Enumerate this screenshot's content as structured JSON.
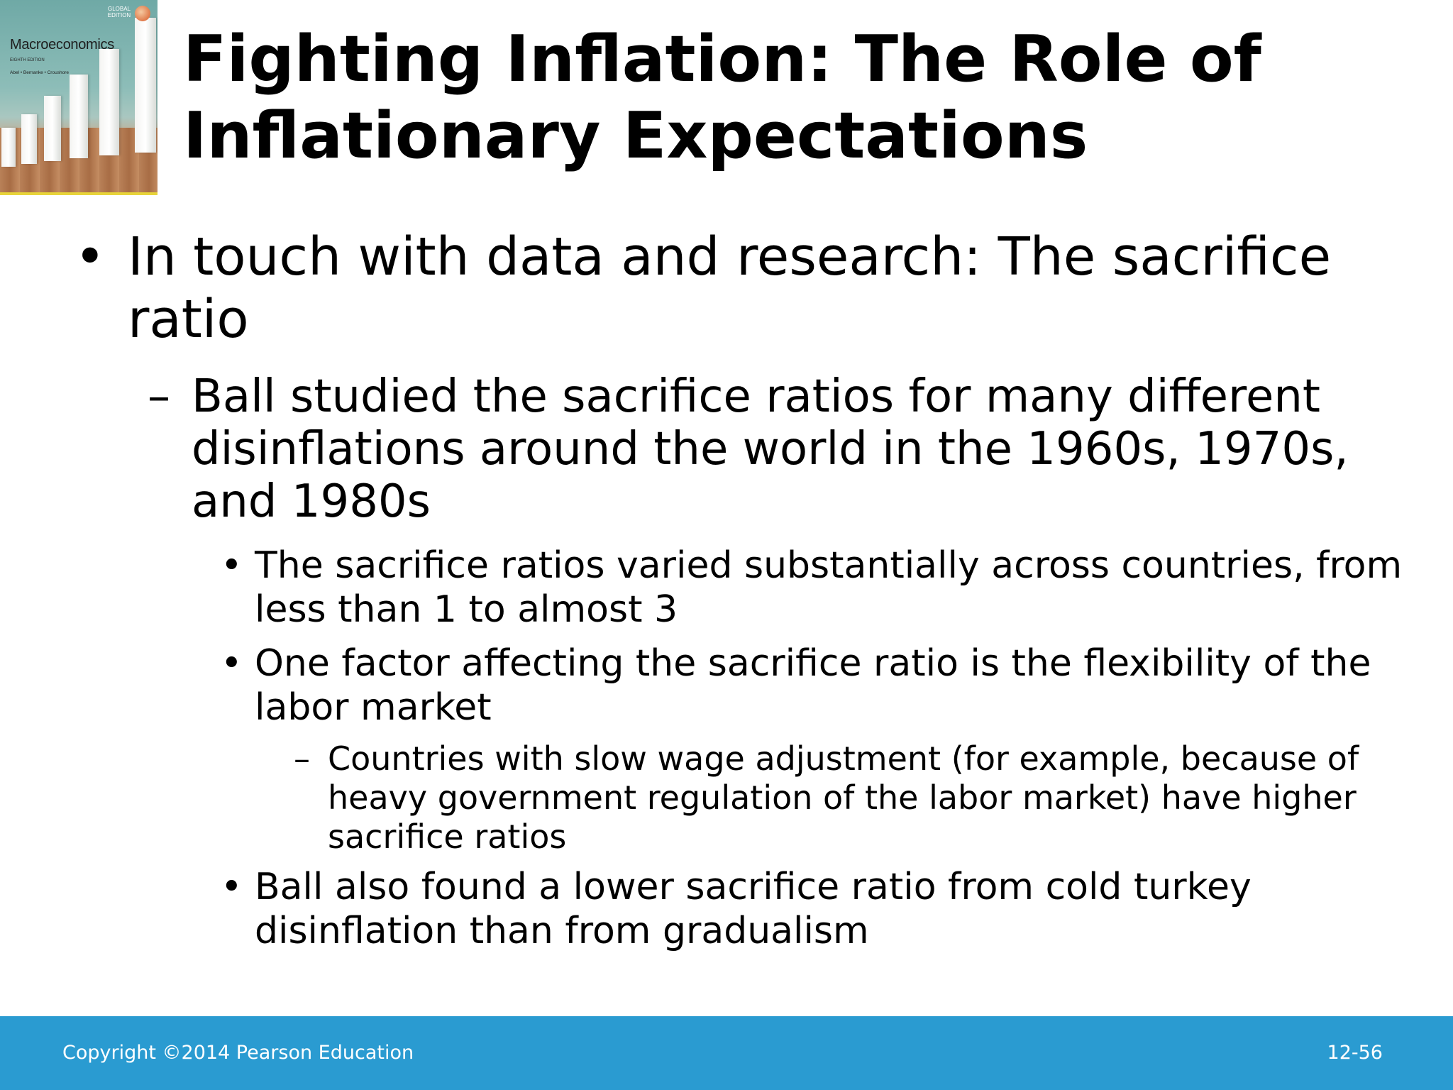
{
  "cover": {
    "title": "Macroeconomics",
    "edition": "EIGHTH EDITION",
    "authors": "Abel • Bernanke • Croushore",
    "badge_line1": "GLOBAL",
    "badge_line2": "EDITION"
  },
  "title": "Fighting Inflation: The Role of Inflationary Expectations",
  "bullets": {
    "b1": "In touch with data and research: The sacrifice ratio",
    "b2": "Ball studied the sacrifice ratios for many different disinflations around the world in the 1960s, 1970s, and 1980s",
    "b3": "The sacrifice ratios varied substantially across countries, from less than 1 to almost 3",
    "b4": "One factor affecting the sacrifice ratio is the flexibility of the labor market",
    "b5": "Countries with slow wage adjustment (for example, because of heavy government regulation of the labor market) have higher sacrifice ratios",
    "b6": "Ball also found a lower sacrifice ratio from cold turkey disinflation than from gradualism"
  },
  "markers": {
    "dot": "•",
    "dash": "–"
  },
  "footer": {
    "copyright": "Copyright ©2014 Pearson Education",
    "slide_number": "12-56"
  },
  "colors": {
    "footer_bg": "#2a9bd1",
    "text": "#000000"
  }
}
